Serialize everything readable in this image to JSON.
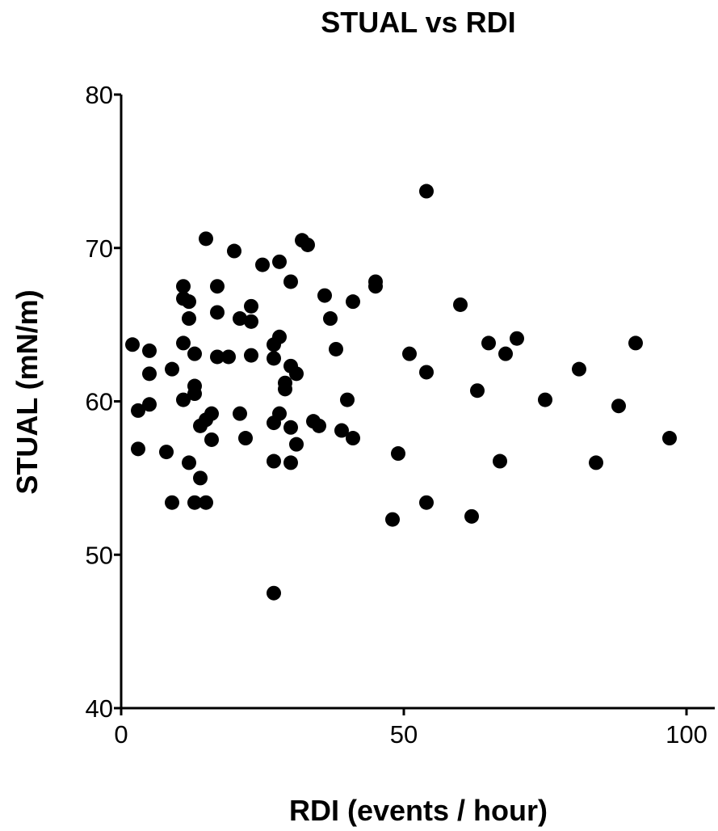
{
  "chart_data": {
    "type": "scatter",
    "title": "STUAL vs RDI",
    "xlabel": "RDI (events / hour)",
    "ylabel": "STUAL (mN/m)",
    "xlim": [
      0,
      105
    ],
    "ylim": [
      40,
      80
    ],
    "xticks": [
      0,
      50,
      100
    ],
    "yticks": [
      40,
      50,
      60,
      70,
      80
    ],
    "grid": false,
    "marker_color": "#000000",
    "points": [
      {
        "x": 2,
        "y": 63.7
      },
      {
        "x": 3,
        "y": 59.4
      },
      {
        "x": 3,
        "y": 56.9
      },
      {
        "x": 5,
        "y": 63.3
      },
      {
        "x": 5,
        "y": 61.8
      },
      {
        "x": 5,
        "y": 59.8
      },
      {
        "x": 8,
        "y": 56.7
      },
      {
        "x": 9,
        "y": 62.1
      },
      {
        "x": 9,
        "y": 53.4
      },
      {
        "x": 11,
        "y": 67.5
      },
      {
        "x": 11,
        "y": 66.7
      },
      {
        "x": 11,
        "y": 63.8
      },
      {
        "x": 11,
        "y": 60.1
      },
      {
        "x": 12,
        "y": 66.5
      },
      {
        "x": 12,
        "y": 65.4
      },
      {
        "x": 12,
        "y": 56.0
      },
      {
        "x": 13,
        "y": 63.1
      },
      {
        "x": 13,
        "y": 61.0
      },
      {
        "x": 13,
        "y": 60.5
      },
      {
        "x": 13,
        "y": 53.4
      },
      {
        "x": 14,
        "y": 58.4
      },
      {
        "x": 14,
        "y": 55.0
      },
      {
        "x": 15,
        "y": 70.6
      },
      {
        "x": 15,
        "y": 58.8
      },
      {
        "x": 15,
        "y": 53.4
      },
      {
        "x": 16,
        "y": 59.2
      },
      {
        "x": 16,
        "y": 57.5
      },
      {
        "x": 17,
        "y": 67.5
      },
      {
        "x": 17,
        "y": 65.8
      },
      {
        "x": 17,
        "y": 62.9
      },
      {
        "x": 19,
        "y": 62.9
      },
      {
        "x": 20,
        "y": 69.8
      },
      {
        "x": 21,
        "y": 65.4
      },
      {
        "x": 21,
        "y": 59.2
      },
      {
        "x": 22,
        "y": 57.6
      },
      {
        "x": 23,
        "y": 66.2
      },
      {
        "x": 23,
        "y": 65.2
      },
      {
        "x": 23,
        "y": 63.0
      },
      {
        "x": 25,
        "y": 68.9
      },
      {
        "x": 27,
        "y": 63.7
      },
      {
        "x": 27,
        "y": 62.8
      },
      {
        "x": 27,
        "y": 58.6
      },
      {
        "x": 27,
        "y": 56.1
      },
      {
        "x": 27,
        "y": 47.5
      },
      {
        "x": 28,
        "y": 69.1
      },
      {
        "x": 28,
        "y": 64.2
      },
      {
        "x": 28,
        "y": 59.2
      },
      {
        "x": 29,
        "y": 61.2
      },
      {
        "x": 29,
        "y": 60.8
      },
      {
        "x": 30,
        "y": 67.8
      },
      {
        "x": 30,
        "y": 62.3
      },
      {
        "x": 30,
        "y": 58.3
      },
      {
        "x": 30,
        "y": 56.0
      },
      {
        "x": 31,
        "y": 61.8
      },
      {
        "x": 31,
        "y": 57.2
      },
      {
        "x": 32,
        "y": 70.5
      },
      {
        "x": 33,
        "y": 70.2
      },
      {
        "x": 34,
        "y": 58.7
      },
      {
        "x": 35,
        "y": 58.4
      },
      {
        "x": 36,
        "y": 66.9
      },
      {
        "x": 37,
        "y": 65.4
      },
      {
        "x": 38,
        "y": 63.4
      },
      {
        "x": 39,
        "y": 58.1
      },
      {
        "x": 40,
        "y": 60.1
      },
      {
        "x": 41,
        "y": 66.5
      },
      {
        "x": 41,
        "y": 57.6
      },
      {
        "x": 45,
        "y": 67.8
      },
      {
        "x": 45,
        "y": 67.5
      },
      {
        "x": 48,
        "y": 52.3
      },
      {
        "x": 49,
        "y": 56.6
      },
      {
        "x": 51,
        "y": 63.1
      },
      {
        "x": 54,
        "y": 73.7
      },
      {
        "x": 54,
        "y": 61.9
      },
      {
        "x": 54,
        "y": 53.4
      },
      {
        "x": 60,
        "y": 66.3
      },
      {
        "x": 62,
        "y": 52.5
      },
      {
        "x": 63,
        "y": 60.7
      },
      {
        "x": 65,
        "y": 63.8
      },
      {
        "x": 67,
        "y": 56.1
      },
      {
        "x": 68,
        "y": 63.1
      },
      {
        "x": 70,
        "y": 64.1
      },
      {
        "x": 75,
        "y": 60.1
      },
      {
        "x": 81,
        "y": 62.1
      },
      {
        "x": 84,
        "y": 56.0
      },
      {
        "x": 88,
        "y": 59.7
      },
      {
        "x": 91,
        "y": 63.8
      },
      {
        "x": 97,
        "y": 57.6
      }
    ]
  }
}
